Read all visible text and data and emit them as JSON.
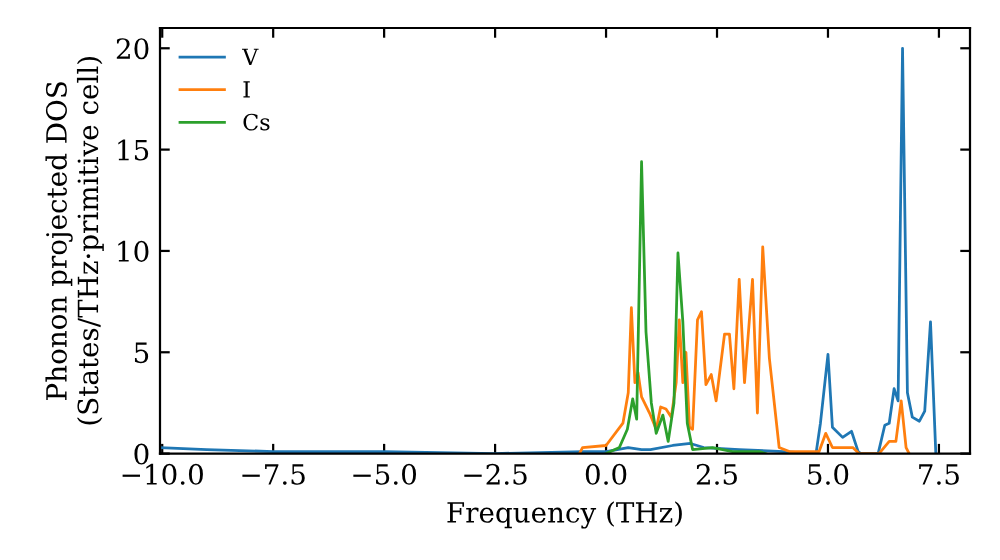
{
  "chart_data": {
    "type": "line",
    "xlabel": "Frequency (THz)",
    "ylabel": "Phonon projected DOS\n(States/THz·primitive cell)",
    "xlim": [
      -10.05,
      8.2
    ],
    "ylim": [
      0,
      21
    ],
    "xticks": [
      {
        "value": -10,
        "label": "−10.0"
      },
      {
        "value": -7.5,
        "label": "−7.5"
      },
      {
        "value": -5,
        "label": "−5.0"
      },
      {
        "value": -2.5,
        "label": "−2.5"
      },
      {
        "value": 0,
        "label": "0.0"
      },
      {
        "value": 2.5,
        "label": "2.5"
      },
      {
        "value": 5,
        "label": "5.0"
      },
      {
        "value": 7.5,
        "label": "7.5"
      }
    ],
    "yticks": [
      0,
      5,
      10,
      15,
      20
    ],
    "grid": false,
    "legend": "top left",
    "marker": "none",
    "line_style": "solid",
    "series": [
      {
        "name": "V",
        "color": "#1f77b4",
        "x": [
          -10.05,
          -9,
          -7.5,
          -5,
          -2.5,
          -0.5,
          0,
          0.5,
          0.8,
          1.0,
          1.5,
          1.9,
          2.2,
          3,
          4,
          4.73,
          4.83,
          5.0,
          5.1,
          5.33,
          5.53,
          5.68,
          5.74,
          6.13,
          6.28,
          6.38,
          6.49,
          6.58,
          6.68,
          6.79,
          6.9,
          7.06,
          7.18,
          7.31,
          7.43
        ],
        "values": [
          0.3,
          0.2,
          0.1,
          0.1,
          0,
          0.1,
          0.1,
          0.3,
          0.2,
          0.2,
          0.4,
          0.5,
          0.3,
          0.2,
          0.1,
          0,
          1.5,
          4.9,
          1.3,
          0.8,
          1.1,
          0.1,
          0,
          0,
          1.4,
          1.5,
          3.2,
          2.6,
          20,
          3.0,
          1.8,
          1.6,
          2.1,
          6.5,
          0
        ]
      },
      {
        "name": "I",
        "color": "#ff7f0e",
        "x": [
          -0.6,
          -0.53,
          0,
          0.38,
          0.5,
          0.57,
          0.65,
          0.72,
          0.8,
          0.98,
          1.13,
          1.23,
          1.35,
          1.47,
          1.58,
          1.65,
          1.73,
          1.8,
          1.88,
          1.95,
          2.06,
          2.15,
          2.25,
          2.37,
          2.48,
          2.67,
          2.78,
          2.88,
          3.0,
          3.12,
          3.3,
          3.41,
          3.53,
          3.68,
          3.9,
          4.13,
          4.8,
          4.95,
          5.1,
          5.56,
          5.7,
          6.15,
          6.38,
          6.53,
          6.65,
          6.76,
          6.83
        ],
        "values": [
          0,
          0.3,
          0.4,
          1.5,
          3.0,
          7.2,
          3.5,
          4.0,
          2.8,
          2.0,
          1.2,
          2.3,
          2.2,
          1.8,
          3.5,
          6.6,
          3.5,
          5.0,
          1.3,
          1.2,
          6.6,
          7.0,
          3.4,
          3.9,
          2.6,
          5.9,
          5.9,
          3.2,
          8.6,
          3.5,
          8.6,
          2.0,
          10.2,
          4.7,
          0.3,
          0.1,
          0.1,
          1.0,
          0.3,
          0.3,
          0,
          0,
          0.6,
          0.6,
          2.6,
          0.3,
          0
        ]
      },
      {
        "name": "Cs",
        "color": "#2ca02c",
        "x": [
          0,
          0.3,
          0.48,
          0.6,
          0.69,
          0.8,
          0.9,
          1.02,
          1.13,
          1.28,
          1.4,
          1.53,
          1.62,
          1.73,
          1.83,
          1.95,
          2.4,
          2.85,
          3.45,
          3.6
        ],
        "values": [
          0,
          0.3,
          1.2,
          2.7,
          1.7,
          14.4,
          6.0,
          2.5,
          1.0,
          1.9,
          0.6,
          2.5,
          9.9,
          6.5,
          1.5,
          0.2,
          0.3,
          0.1,
          0.1,
          0
        ]
      }
    ]
  }
}
